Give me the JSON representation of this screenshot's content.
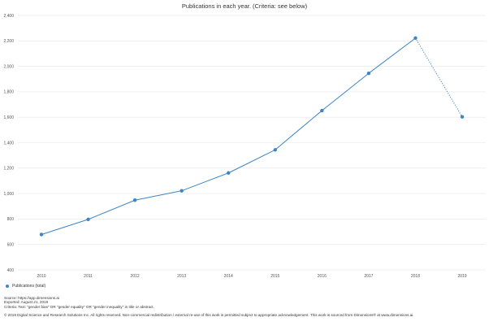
{
  "chart_data": {
    "type": "line",
    "title": "Publications in each year. (Criteria: see below)",
    "categories": [
      "2010",
      "2011",
      "2012",
      "2013",
      "2014",
      "2015",
      "2016",
      "2017",
      "2018",
      "2019"
    ],
    "series": [
      {
        "name": "Publications (total)",
        "values": [
          678,
          797,
          948,
          1022,
          1162,
          1344,
          1652,
          1945,
          2222,
          1603
        ],
        "color": "#3d85c6",
        "last_segment_style": "dotted"
      }
    ],
    "y_ticks": [
      "400",
      "600",
      "800",
      "1,000",
      "1,200",
      "1,400",
      "1,600",
      "1,800",
      "2,000",
      "2,200",
      "2,400"
    ],
    "ylim": [
      400,
      2400
    ],
    "grid": true,
    "legend_position": "bottom-left",
    "xlabel": "",
    "ylabel": ""
  },
  "notes": {
    "source": "Source: https://app.dimensions.ai",
    "exported": "Exported: August 21, 2019",
    "criteria": "Criteria: Text: \"gender bias\" OR \"gender equality\" OR \"gender inequality\" in title or abstract."
  },
  "copyright": "© 2019 Digital Science and Research Solutions Inc. All rights reserved. Non-commercial redistribution / external re-use of this work is permitted subject to appropriate acknowledgement. This work is sourced from Dimensions® at www.dimensions.ai."
}
